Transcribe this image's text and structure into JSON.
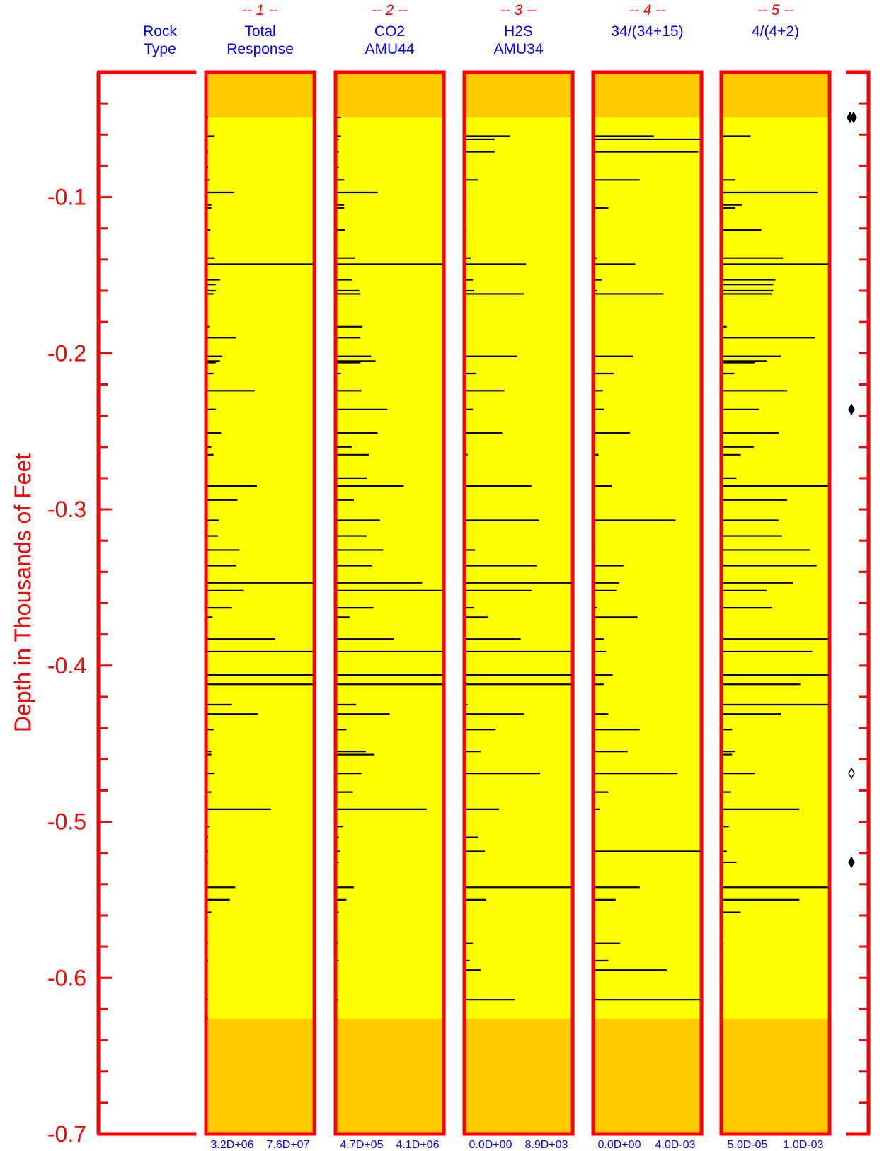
{
  "chart_data": {
    "type": "bar",
    "orientation": "horizontal-log-tracks",
    "ylabel": "Depth in Thousands of Feet",
    "ylim": [
      -0.7,
      -0.02
    ],
    "yticks": [
      {
        "value": -0.1,
        "label": "-0.1"
      },
      {
        "value": -0.2,
        "label": "-0.2"
      },
      {
        "value": -0.3,
        "label": "-0.3"
      },
      {
        "value": -0.4,
        "label": "-0.4"
      },
      {
        "value": -0.5,
        "label": "-0.5"
      },
      {
        "value": -0.6,
        "label": "-0.6"
      },
      {
        "value": -0.7,
        "label": "-0.7"
      }
    ],
    "rock_type": {
      "line1": "Rock",
      "line2": "Type"
    },
    "data_window": {
      "top": -0.049,
      "bottom": -0.626
    },
    "colors": {
      "frame": "#ff0000",
      "inside": "#ffff00",
      "outside": "#ffcc00",
      "bars": "#000000",
      "tick_labels": "#ff0000",
      "header_text": "#0000ff"
    },
    "tracks": [
      {
        "number": "-- 1 --",
        "line1": "Total",
        "line2": "Response",
        "scale_min": "3.2D+06",
        "scale_max": "7.6D+07",
        "bars": [
          [
            -0.049,
            0.02
          ],
          [
            -0.061,
            0.08
          ],
          [
            -0.071,
            0.02
          ],
          [
            -0.081,
            0.02
          ],
          [
            -0.089,
            0.03
          ],
          [
            -0.097,
            0.26
          ],
          [
            -0.105,
            0.05
          ],
          [
            -0.107,
            0.05
          ],
          [
            -0.121,
            0.04
          ],
          [
            -0.139,
            0.08
          ],
          [
            -0.143,
            1.0
          ],
          [
            -0.153,
            0.13
          ],
          [
            -0.156,
            0.09
          ],
          [
            -0.16,
            0.09
          ],
          [
            -0.162,
            0.07
          ],
          [
            -0.183,
            0.03
          ],
          [
            -0.19,
            0.28
          ],
          [
            -0.202,
            0.15
          ],
          [
            -0.205,
            0.13
          ],
          [
            -0.206,
            0.09
          ],
          [
            -0.213,
            0.07
          ],
          [
            -0.224,
            0.45
          ],
          [
            -0.236,
            0.09
          ],
          [
            -0.251,
            0.14
          ],
          [
            -0.26,
            0.05
          ],
          [
            -0.265,
            0.07
          ],
          [
            -0.285,
            0.47
          ],
          [
            -0.294,
            0.29
          ],
          [
            -0.307,
            0.12
          ],
          [
            -0.317,
            0.11
          ],
          [
            -0.326,
            0.31
          ],
          [
            -0.336,
            0.28
          ],
          [
            -0.347,
            1.0
          ],
          [
            -0.352,
            0.35
          ],
          [
            -0.363,
            0.24
          ],
          [
            -0.369,
            0.06
          ],
          [
            -0.383,
            0.64
          ],
          [
            -0.391,
            1.0
          ],
          [
            -0.406,
            1.0
          ],
          [
            -0.412,
            1.0
          ],
          [
            -0.425,
            0.24
          ],
          [
            -0.431,
            0.48
          ],
          [
            -0.441,
            0.07
          ],
          [
            -0.455,
            0.05
          ],
          [
            -0.457,
            0.05
          ],
          [
            -0.469,
            0.08
          ],
          [
            -0.481,
            0.05
          ],
          [
            -0.492,
            0.6
          ],
          [
            -0.503,
            0.03
          ],
          [
            -0.51,
            0.02
          ],
          [
            -0.519,
            0.02
          ],
          [
            -0.526,
            0.02
          ],
          [
            -0.542,
            0.27
          ],
          [
            -0.55,
            0.22
          ],
          [
            -0.558,
            0.05
          ],
          [
            -0.578,
            0.02
          ],
          [
            -0.589,
            0.02
          ],
          [
            -0.614,
            0.02
          ],
          [
            -0.626,
            0.02
          ]
        ]
      },
      {
        "number": "-- 2 --",
        "line1": "CO2",
        "line2": "AMU44",
        "scale_min": "4.7D+05",
        "scale_max": "4.1D+06",
        "bars": [
          [
            -0.049,
            0.05
          ],
          [
            -0.061,
            0.05
          ],
          [
            -0.063,
            0.03
          ],
          [
            -0.071,
            0.03
          ],
          [
            -0.081,
            0.03
          ],
          [
            -0.089,
            0.08
          ],
          [
            -0.097,
            0.39
          ],
          [
            -0.105,
            0.08
          ],
          [
            -0.107,
            0.08
          ],
          [
            -0.121,
            0.09
          ],
          [
            -0.139,
            0.18
          ],
          [
            -0.143,
            1.0
          ],
          [
            -0.153,
            0.15
          ],
          [
            -0.16,
            0.22
          ],
          [
            -0.162,
            0.23
          ],
          [
            -0.183,
            0.25
          ],
          [
            -0.19,
            0.23
          ],
          [
            -0.202,
            0.33
          ],
          [
            -0.205,
            0.37
          ],
          [
            -0.206,
            0.23
          ],
          [
            -0.213,
            0.05
          ],
          [
            -0.224,
            0.24
          ],
          [
            -0.236,
            0.48
          ],
          [
            -0.251,
            0.39
          ],
          [
            -0.26,
            0.15
          ],
          [
            -0.265,
            0.31
          ],
          [
            -0.28,
            0.29
          ],
          [
            -0.285,
            0.63
          ],
          [
            -0.294,
            0.17
          ],
          [
            -0.307,
            0.41
          ],
          [
            -0.317,
            0.29
          ],
          [
            -0.326,
            0.44
          ],
          [
            -0.336,
            0.34
          ],
          [
            -0.347,
            0.8
          ],
          [
            -0.352,
            0.98
          ],
          [
            -0.363,
            0.35
          ],
          [
            -0.369,
            0.13
          ],
          [
            -0.383,
            0.54
          ],
          [
            -0.391,
            1.0
          ],
          [
            -0.406,
            1.0
          ],
          [
            -0.412,
            1.0
          ],
          [
            -0.425,
            0.19
          ],
          [
            -0.431,
            0.5
          ],
          [
            -0.441,
            0.1
          ],
          [
            -0.455,
            0.28
          ],
          [
            -0.457,
            0.36
          ],
          [
            -0.469,
            0.24
          ],
          [
            -0.481,
            0.16
          ],
          [
            -0.492,
            0.84
          ],
          [
            -0.503,
            0.07
          ],
          [
            -0.51,
            0.03
          ],
          [
            -0.519,
            0.04
          ],
          [
            -0.526,
            0.03
          ],
          [
            -0.542,
            0.17
          ],
          [
            -0.55,
            0.1
          ],
          [
            -0.558,
            0.03
          ],
          [
            -0.578,
            0.02
          ],
          [
            -0.589,
            0.03
          ],
          [
            -0.614,
            0.02
          ]
        ]
      },
      {
        "number": "-- 3 --",
        "line1": "H2S",
        "line2": "AMU34",
        "scale_min": "0.0D+00",
        "scale_max": "8.9D+03",
        "bars": [
          [
            -0.061,
            0.42
          ],
          [
            -0.063,
            0.28
          ],
          [
            -0.071,
            0.28
          ],
          [
            -0.089,
            0.13
          ],
          [
            -0.097,
            0.02
          ],
          [
            -0.105,
            0.02
          ],
          [
            -0.121,
            0.02
          ],
          [
            -0.139,
            0.06
          ],
          [
            -0.143,
            0.57
          ],
          [
            -0.153,
            0.08
          ],
          [
            -0.16,
            0.09
          ],
          [
            -0.162,
            0.55
          ],
          [
            -0.202,
            0.49
          ],
          [
            -0.213,
            0.11
          ],
          [
            -0.224,
            0.37
          ],
          [
            -0.236,
            0.08
          ],
          [
            -0.251,
            0.35
          ],
          [
            -0.265,
            0.03
          ],
          [
            -0.285,
            0.62
          ],
          [
            -0.307,
            0.69
          ],
          [
            -0.326,
            0.1
          ],
          [
            -0.336,
            0.67
          ],
          [
            -0.347,
            1.0
          ],
          [
            -0.352,
            0.62
          ],
          [
            -0.363,
            0.09
          ],
          [
            -0.369,
            0.22
          ],
          [
            -0.383,
            0.52
          ],
          [
            -0.391,
            1.0
          ],
          [
            -0.406,
            1.0
          ],
          [
            -0.412,
            1.0
          ],
          [
            -0.425,
            0.03
          ],
          [
            -0.431,
            0.55
          ],
          [
            -0.441,
            0.29
          ],
          [
            -0.455,
            0.15
          ],
          [
            -0.469,
            0.7
          ],
          [
            -0.492,
            0.32
          ],
          [
            -0.51,
            0.13
          ],
          [
            -0.519,
            0.19
          ],
          [
            -0.542,
            1.0
          ],
          [
            -0.55,
            0.2
          ],
          [
            -0.578,
            0.08
          ],
          [
            -0.589,
            0.05
          ],
          [
            -0.595,
            0.15
          ],
          [
            -0.614,
            0.47
          ]
        ]
      },
      {
        "number": "-- 4 --",
        "line1": "34/(34+15)",
        "line2": "",
        "scale_min": "0.0D+00",
        "scale_max": "4.0D-03",
        "bars": [
          [
            -0.061,
            0.56
          ],
          [
            -0.063,
            1.0
          ],
          [
            -0.071,
            0.97
          ],
          [
            -0.089,
            0.43
          ],
          [
            -0.107,
            0.14
          ],
          [
            -0.139,
            0.04
          ],
          [
            -0.143,
            0.39
          ],
          [
            -0.153,
            0.08
          ],
          [
            -0.16,
            0.04
          ],
          [
            -0.162,
            0.65
          ],
          [
            -0.202,
            0.37
          ],
          [
            -0.213,
            0.19
          ],
          [
            -0.224,
            0.09
          ],
          [
            -0.236,
            0.1
          ],
          [
            -0.251,
            0.34
          ],
          [
            -0.265,
            0.05
          ],
          [
            -0.285,
            0.17
          ],
          [
            -0.307,
            0.76
          ],
          [
            -0.326,
            0.02
          ],
          [
            -0.336,
            0.28
          ],
          [
            -0.347,
            0.24
          ],
          [
            -0.352,
            0.22
          ],
          [
            -0.363,
            0.04
          ],
          [
            -0.369,
            0.41
          ],
          [
            -0.383,
            0.1
          ],
          [
            -0.391,
            0.12
          ],
          [
            -0.406,
            0.18
          ],
          [
            -0.412,
            0.1
          ],
          [
            -0.431,
            0.14
          ],
          [
            -0.441,
            0.43
          ],
          [
            -0.455,
            0.32
          ],
          [
            -0.469,
            0.78
          ],
          [
            -0.481,
            0.14
          ],
          [
            -0.492,
            0.06
          ],
          [
            -0.519,
            1.0
          ],
          [
            -0.542,
            0.43
          ],
          [
            -0.55,
            0.21
          ],
          [
            -0.578,
            0.25
          ],
          [
            -0.589,
            0.14
          ],
          [
            -0.595,
            0.68
          ],
          [
            -0.614,
            1.0
          ]
        ]
      },
      {
        "number": "-- 5 --",
        "line1": "4/(4+2)",
        "line2": "",
        "scale_min": "5.0D-05",
        "scale_max": "1.0D-03",
        "bars": [
          [
            -0.049,
            0.02
          ],
          [
            -0.061,
            0.27
          ],
          [
            -0.071,
            0.02
          ],
          [
            -0.089,
            0.13
          ],
          [
            -0.097,
            0.89
          ],
          [
            -0.105,
            0.19
          ],
          [
            -0.107,
            0.13
          ],
          [
            -0.121,
            0.37
          ],
          [
            -0.139,
            0.57
          ],
          [
            -0.143,
            1.0
          ],
          [
            -0.153,
            0.5
          ],
          [
            -0.156,
            0.48
          ],
          [
            -0.16,
            0.48
          ],
          [
            -0.162,
            0.47
          ],
          [
            -0.183,
            0.05
          ],
          [
            -0.19,
            0.87
          ],
          [
            -0.202,
            0.55
          ],
          [
            -0.205,
            0.42
          ],
          [
            -0.206,
            0.31
          ],
          [
            -0.213,
            0.12
          ],
          [
            -0.224,
            0.61
          ],
          [
            -0.236,
            0.35
          ],
          [
            -0.251,
            0.53
          ],
          [
            -0.26,
            0.3
          ],
          [
            -0.265,
            0.18
          ],
          [
            -0.28,
            0.14
          ],
          [
            -0.285,
            1.0
          ],
          [
            -0.294,
            0.61
          ],
          [
            -0.307,
            0.53
          ],
          [
            -0.317,
            0.56
          ],
          [
            -0.326,
            0.82
          ],
          [
            -0.336,
            0.88
          ],
          [
            -0.347,
            0.66
          ],
          [
            -0.352,
            0.42
          ],
          [
            -0.363,
            0.47
          ],
          [
            -0.383,
            1.0
          ],
          [
            -0.391,
            0.84
          ],
          [
            -0.406,
            1.0
          ],
          [
            -0.412,
            0.73
          ],
          [
            -0.425,
            1.0
          ],
          [
            -0.431,
            0.55
          ],
          [
            -0.441,
            0.1
          ],
          [
            -0.455,
            0.13
          ],
          [
            -0.457,
            0.1
          ],
          [
            -0.469,
            0.31
          ],
          [
            -0.481,
            0.09
          ],
          [
            -0.492,
            0.72
          ],
          [
            -0.503,
            0.07
          ],
          [
            -0.519,
            0.05
          ],
          [
            -0.526,
            0.14
          ],
          [
            -0.542,
            1.0
          ],
          [
            -0.55,
            0.72
          ],
          [
            -0.558,
            0.18
          ],
          [
            -0.569,
            0.02
          ],
          [
            -0.578,
            0.02
          ],
          [
            -0.589,
            0.02
          ],
          [
            -0.602,
            0.02
          ],
          [
            -0.626,
            0.02
          ]
        ]
      }
    ],
    "markers": [
      {
        "depth": -0.049,
        "style": "filled"
      },
      {
        "depth": -0.049,
        "style": "filled"
      },
      {
        "depth": -0.236,
        "style": "filled"
      },
      {
        "depth": -0.469,
        "style": "open"
      },
      {
        "depth": -0.526,
        "style": "filled"
      }
    ]
  }
}
